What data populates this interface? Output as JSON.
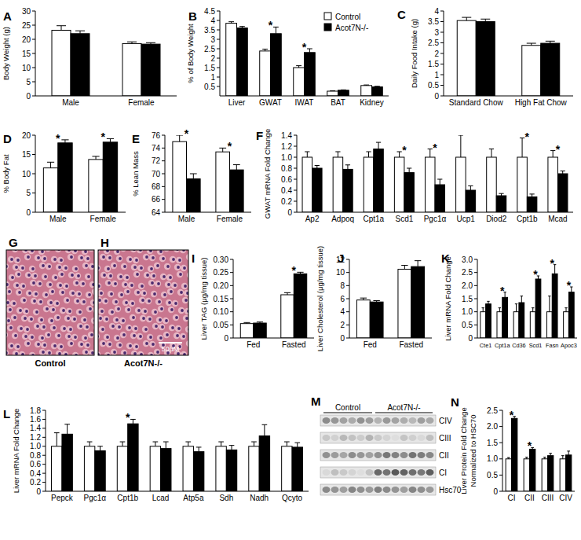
{
  "chart_data": [
    {
      "type": "bar",
      "title": "A",
      "ylabel": "Body Weight (g)",
      "categories": [
        "Male",
        "Female"
      ],
      "series": [
        {
          "name": "Control",
          "color": "#ffffff",
          "values": [
            23.2,
            18.5
          ],
          "errors": [
            1.6,
            0.6
          ]
        },
        {
          "name": "Acot7N-/-",
          "color": "#000000",
          "values": [
            22,
            18.3
          ],
          "errors": [
            1.0,
            0.5
          ]
        }
      ],
      "ylim": [
        0,
        30
      ],
      "yticks": [
        0,
        5,
        10,
        15,
        20,
        25,
        30
      ]
    },
    {
      "type": "bar",
      "title": "B",
      "ylabel": "% of Body Weight",
      "categories": [
        "Liver",
        "GWAT",
        "IWAT",
        "BAT",
        "Kidney"
      ],
      "series": [
        {
          "name": "Control",
          "color": "#ffffff",
          "values": [
            3.85,
            2.38,
            1.5,
            0.25,
            0.55
          ],
          "errors": [
            0.08,
            0.1,
            0.1,
            0.02,
            0.03
          ]
        },
        {
          "name": "Acot7N-/-",
          "color": "#000000",
          "values": [
            3.6,
            3.3,
            2.3,
            0.3,
            0.48
          ],
          "errors": [
            0.08,
            0.35,
            0.2,
            0.02,
            0.03
          ]
        }
      ],
      "ylim": [
        0,
        4.5
      ],
      "yticks": [
        0.5,
        1,
        1.5,
        2,
        2.5,
        3,
        3.5,
        4,
        4.5
      ],
      "legend": "upper right",
      "annotations": [
        {
          "text": "*",
          "category": "GWAT"
        },
        {
          "text": "*",
          "category": "IWAT"
        }
      ]
    },
    {
      "type": "bar",
      "title": "C",
      "ylabel": "Daily Food Intake (g)",
      "categories": [
        "Standard Chow",
        "High Fat Chow"
      ],
      "series": [
        {
          "color": "#ffffff",
          "values": [
            3.55,
            2.38
          ],
          "errors": [
            0.15,
            0.1
          ]
        },
        {
          "color": "#000000",
          "values": [
            3.5,
            2.48
          ],
          "errors": [
            0.12,
            0.1
          ]
        }
      ],
      "ylim": [
        0,
        4
      ],
      "yticks": [
        0,
        0.5,
        1,
        1.5,
        2,
        2.5,
        3,
        3.5,
        4
      ]
    },
    {
      "type": "bar",
      "title": "D",
      "ylabel": "% Body Fat",
      "categories": [
        "Male",
        "Female"
      ],
      "series": [
        {
          "color": "#ffffff",
          "values": [
            11.5,
            13.7
          ],
          "errors": [
            1.5,
            0.8
          ]
        },
        {
          "color": "#000000",
          "values": [
            18,
            18.2
          ],
          "errors": [
            0.8,
            0.9
          ]
        }
      ],
      "ylim": [
        0,
        20
      ],
      "yticks": [
        0,
        5,
        10,
        15,
        20
      ],
      "annotations": [
        {
          "text": "*",
          "category": "Male"
        },
        {
          "text": "*",
          "category": "Female"
        }
      ]
    },
    {
      "type": "bar",
      "title": "E",
      "ylabel": "% Lean Mass",
      "categories": [
        "Male",
        "Female"
      ],
      "series": [
        {
          "color": "#ffffff",
          "values": [
            75,
            73.4
          ],
          "errors": [
            1.0,
            0.6
          ]
        },
        {
          "color": "#000000",
          "values": [
            69.2,
            70.6
          ],
          "errors": [
            0.8,
            0.8
          ]
        }
      ],
      "ylim": [
        64,
        76
      ],
      "yticks": [
        64,
        66,
        68,
        70,
        72,
        74,
        76
      ],
      "annotations": [
        {
          "text": "*",
          "category": "Male"
        },
        {
          "text": "*",
          "category": "Female"
        }
      ]
    },
    {
      "type": "bar",
      "title": "F",
      "ylabel": "GWAT mRNA Fold Change",
      "categories": [
        "Ap2",
        "Adpoq",
        "Cpt1a",
        "Scd1",
        "Pgc1α",
        "Ucp1",
        "Diod2",
        "Cpt1b",
        "Mcad"
      ],
      "series": [
        {
          "color": "#ffffff",
          "values": [
            1,
            1,
            1,
            1,
            1,
            1,
            1,
            1,
            1
          ],
          "errors": [
            0.1,
            0.1,
            0.1,
            0.1,
            0.15,
            0.4,
            0.15,
            0.35,
            0.12
          ]
        },
        {
          "color": "#000000",
          "values": [
            0.8,
            0.78,
            1.15,
            0.72,
            0.5,
            0.4,
            0.3,
            0.28,
            0.7
          ],
          "errors": [
            0.05,
            0.08,
            0.12,
            0.08,
            0.1,
            0.08,
            0.04,
            0.05,
            0.05
          ]
        }
      ],
      "ylim": [
        0,
        1.4
      ],
      "yticks": [
        0,
        0.2,
        0.4,
        0.6,
        0.8,
        {
          "value": 1,
          "label": "1.0"
        },
        1.2,
        1.4
      ],
      "annotations": [
        {
          "text": "*",
          "category": "Scd1"
        },
        {
          "text": "*",
          "category": "Pgc1α"
        },
        {
          "text": "*",
          "category": "Cpt1b"
        },
        {
          "text": "*",
          "category": "Mcad"
        }
      ]
    },
    {
      "type": "bar",
      "title": "I",
      "ylabel": "Liver TAG (μg/mg tissue)",
      "categories": [
        "Fed",
        "Fasted"
      ],
      "series": [
        {
          "color": "#ffffff",
          "values": [
            0.055,
            0.165
          ],
          "errors": [
            0.004,
            0.008
          ]
        },
        {
          "color": "#000000",
          "values": [
            0.057,
            0.245
          ],
          "errors": [
            0.004,
            0.006
          ]
        }
      ],
      "ylim": [
        0,
        0.3
      ],
      "yticks": [
        0,
        0.05,
        {
          "value": 0.1,
          "label": "0.10"
        },
        0.15,
        {
          "value": 0.2,
          "label": "0.20"
        },
        0.25,
        {
          "value": 0.3,
          "label": "0.30"
        }
      ],
      "annotations": [
        {
          "text": "*",
          "category": "Fasted"
        }
      ]
    },
    {
      "type": "bar",
      "title": "J",
      "ylabel": "Liver Cholesterol (μg/mg tissue)",
      "categories": [
        "Fed",
        "Fasted"
      ],
      "series": [
        {
          "color": "#ffffff",
          "values": [
            5.8,
            10.5
          ],
          "errors": [
            0.3,
            0.6
          ]
        },
        {
          "color": "#000000",
          "values": [
            5.5,
            10.9
          ],
          "errors": [
            0.2,
            0.9
          ]
        }
      ],
      "ylim": [
        0,
        12
      ],
      "yticks": [
        0,
        2,
        4,
        6,
        8,
        10,
        12
      ]
    },
    {
      "type": "bar",
      "title": "K",
      "ylabel": "Liver mRNA Fold Change",
      "categories": [
        "Cte1",
        "Cpt1a",
        "Cd36",
        "Scd1",
        "Fasn",
        "Apoc3"
      ],
      "series": [
        {
          "color": "#ffffff",
          "values": [
            1,
            1,
            1,
            1,
            1,
            1
          ],
          "errors": [
            0.15,
            0.15,
            0.3,
            0.15,
            0.6,
            0.15
          ]
        },
        {
          "color": "#000000",
          "values": [
            1.3,
            1.55,
            1.35,
            2.25,
            2.45,
            1.75
          ],
          "errors": [
            0.1,
            0.2,
            0.25,
            0.12,
            0.35,
            0.2
          ]
        }
      ],
      "ylim": [
        0,
        3
      ],
      "yticks": [
        0,
        0.5,
        {
          "value": 1,
          "label": "1.0"
        },
        1.5,
        {
          "value": 2,
          "label": "2.0"
        },
        2.5,
        {
          "value": 3,
          "label": "3.0"
        }
      ],
      "annotations": [
        {
          "text": "*",
          "category": "Cpt1a"
        },
        {
          "text": "*",
          "category": "Scd1"
        },
        {
          "text": "*",
          "category": "Fasn"
        },
        {
          "text": "*",
          "category": "Apoc3"
        }
      ]
    },
    {
      "type": "bar",
      "title": "L",
      "ylabel": "Liver mRNA Fold Change",
      "categories": [
        "Pepck",
        "Pgc1α",
        "Cpt1b",
        "Lcad",
        "Atp5a",
        "Sdh",
        "Nadh",
        "Qcyto"
      ],
      "series": [
        {
          "color": "#ffffff",
          "values": [
            1,
            1,
            1,
            1,
            1,
            1,
            1,
            1
          ],
          "errors": [
            0.3,
            0.1,
            0.1,
            0.1,
            0.1,
            0.1,
            0.1,
            0.1
          ]
        },
        {
          "color": "#000000",
          "values": [
            1.27,
            0.9,
            1.5,
            0.95,
            0.88,
            0.92,
            1.23,
            0.98
          ],
          "errors": [
            0.22,
            0.1,
            0.1,
            0.15,
            0.1,
            0.1,
            0.25,
            0.1
          ]
        }
      ],
      "ylim": [
        0,
        1.8
      ],
      "yticks": [
        0,
        0.2,
        0.4,
        0.6,
        0.8,
        {
          "value": 1,
          "label": "1.0"
        },
        1.2,
        1.4,
        1.6,
        1.8
      ],
      "annotations": [
        {
          "text": "*",
          "category": "Cpt1b"
        }
      ]
    },
    {
      "type": "bar",
      "title": "N",
      "ylabel": [
        "Liver Protein Fold Change",
        "Normalized to HSC70"
      ],
      "categories": [
        "CI",
        "CII",
        "CIII",
        "CIV"
      ],
      "series": [
        {
          "color": "#ffffff",
          "values": [
            1,
            1,
            1,
            1
          ],
          "errors": [
            0.04,
            0.05,
            0.05,
            0.1
          ]
        },
        {
          "color": "#000000",
          "values": [
            2.25,
            1.3,
            1.1,
            1.12
          ],
          "errors": [
            0.06,
            0.05,
            0.07,
            0.12
          ]
        }
      ],
      "ylim": [
        0,
        2.5
      ],
      "yticks": [
        0,
        0.5,
        {
          "value": 1,
          "label": "1.0"
        },
        1.5,
        {
          "value": 2,
          "label": "2.0"
        },
        2.5
      ],
      "annotations": [
        {
          "text": "*",
          "category": "CI"
        },
        {
          "text": "*",
          "category": "CII"
        }
      ]
    }
  ],
  "images": [
    {
      "title": "G",
      "label": "Control"
    },
    {
      "title": "H",
      "label": "Acot7N-/-",
      "scale_bar": "50μM"
    }
  ],
  "blot": {
    "title": "M",
    "groups": [
      "Control",
      "Acot7N-/-"
    ],
    "rows": [
      "CIV",
      "CIII",
      "CII",
      "CI",
      "Hsc70"
    ]
  }
}
